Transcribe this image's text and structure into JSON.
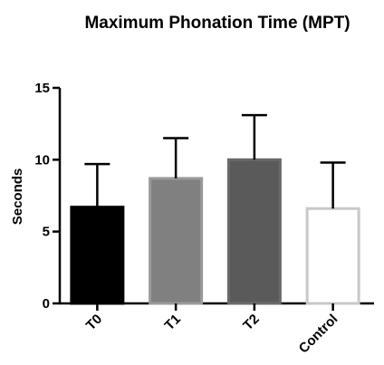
{
  "chart_data": {
    "type": "bar",
    "title": "Maximum Phonation Time (MPT)",
    "xlabel": "",
    "ylabel": "Seconds",
    "ylim": [
      0,
      15
    ],
    "yticks": [
      0,
      5,
      10,
      15
    ],
    "categories": [
      "T0",
      "T1",
      "T2",
      "Control"
    ],
    "values": [
      6.7,
      8.7,
      10.0,
      6.6
    ],
    "error_upper": [
      3.0,
      2.8,
      3.1,
      3.2
    ],
    "bar_fill_colors": [
      "#000000",
      "#808080",
      "#5a5a5a",
      "#ffffff"
    ],
    "bar_stroke_colors": [
      "#000000",
      "#9a9a9a",
      "#6a6a6a",
      "#c8c8c8"
    ],
    "grid": false,
    "legend": "none"
  }
}
